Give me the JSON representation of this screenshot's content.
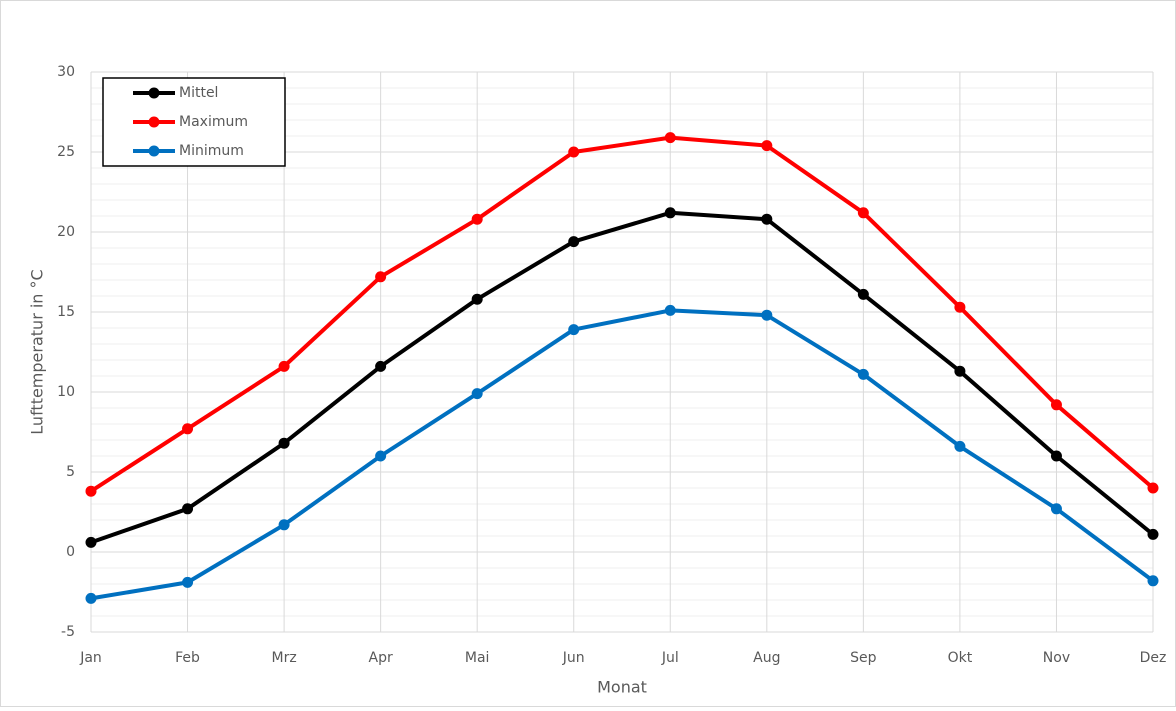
{
  "chart_data": {
    "type": "line",
    "x_label": "Monat",
    "y_label": "Lufttemperatur in °C",
    "categories": [
      "Jan",
      "Feb",
      "Mrz",
      "Apr",
      "Mai",
      "Jun",
      "Jul",
      "Aug",
      "Sep",
      "Okt",
      "Nov",
      "Dez"
    ],
    "series": [
      {
        "name": "Mittel",
        "color": "#000000",
        "values": [
          0.6,
          2.7,
          6.8,
          11.6,
          15.8,
          19.4,
          21.2,
          20.8,
          16.1,
          11.3,
          6.0,
          1.1
        ]
      },
      {
        "name": "Maximum",
        "color": "#ff0000",
        "values": [
          3.8,
          7.7,
          11.6,
          17.2,
          20.8,
          25.0,
          25.9,
          25.4,
          21.2,
          15.3,
          9.2,
          4.0
        ]
      },
      {
        "name": "Minimum",
        "color": "#0070c0",
        "values": [
          -2.9,
          -1.9,
          1.7,
          6.0,
          9.9,
          13.9,
          15.1,
          14.8,
          11.1,
          6.6,
          2.7,
          -1.8
        ]
      }
    ],
    "ylim": [
      -5,
      30
    ],
    "yticks": [
      -5,
      0,
      5,
      10,
      15,
      20,
      25,
      30
    ],
    "yminorticks": [
      -4,
      -3,
      -2,
      -1,
      1,
      2,
      3,
      4,
      6,
      7,
      8,
      9,
      11,
      12,
      13,
      14,
      16,
      17,
      18,
      19,
      21,
      22,
      23,
      24,
      26,
      27,
      28,
      29
    ],
    "grid": true,
    "legend": "top-left"
  }
}
